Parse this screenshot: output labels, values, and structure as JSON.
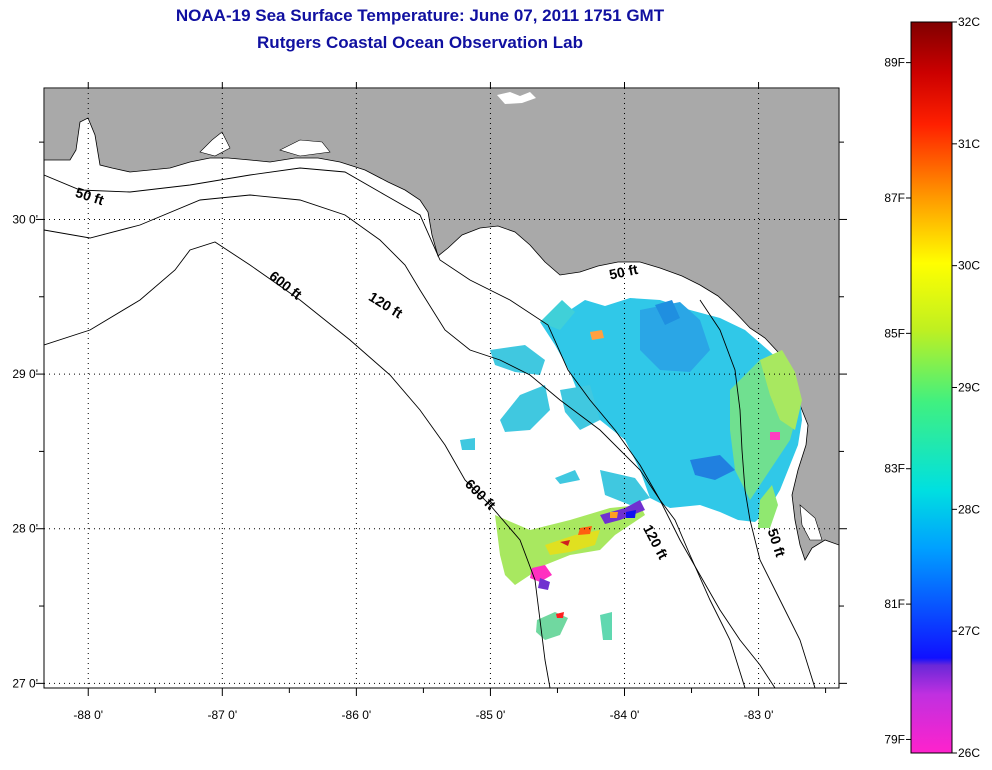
{
  "header": {
    "title": "NOAA-19 Sea Surface Temperature:  June 07, 2011 1751 GMT",
    "subtitle": "Rutgers Coastal Ocean Observation Lab"
  },
  "map": {
    "lon_range": [
      -88.33,
      -82.4
    ],
    "lat_range": [
      26.97,
      30.85
    ],
    "lon_ticks": [
      {
        "value": -88,
        "label": "-88 0'"
      },
      {
        "value": -87,
        "label": "-87 0'"
      },
      {
        "value": -86,
        "label": "-86 0'"
      },
      {
        "value": -85,
        "label": "-85 0'"
      },
      {
        "value": -84,
        "label": "-84 0'"
      },
      {
        "value": -83,
        "label": "-83 0'"
      }
    ],
    "lat_ticks": [
      {
        "value": 30,
        "label": "30 0'"
      },
      {
        "value": 29,
        "label": "29 0'"
      },
      {
        "value": 28,
        "label": "28 0'"
      },
      {
        "value": 27,
        "label": "27 0'"
      }
    ],
    "contour_labels": [
      {
        "text": "50 ft",
        "lon": -88.0,
        "lat": 30.12,
        "rotate": 18
      },
      {
        "text": "600 ft",
        "lon": -86.55,
        "lat": 29.55,
        "rotate": 38
      },
      {
        "text": "120 ft",
        "lon": -85.8,
        "lat": 29.42,
        "rotate": 32
      },
      {
        "text": "50 ft",
        "lon": -84.0,
        "lat": 29.63,
        "rotate": -12
      },
      {
        "text": "600 ft",
        "lon": -85.1,
        "lat": 28.2,
        "rotate": 45
      },
      {
        "text": "120 ft",
        "lon": -83.8,
        "lat": 27.9,
        "rotate": 62
      },
      {
        "text": "50 ft",
        "lon": -82.9,
        "lat": 27.9,
        "rotate": 72
      }
    ],
    "colors": {
      "land": "#a9a9a9",
      "ocean": "#ffffff",
      "grid": "#000000"
    }
  },
  "colorbar": {
    "celsius": [
      {
        "value": 32,
        "label": "32C"
      },
      {
        "value": 31,
        "label": "31C"
      },
      {
        "value": 30,
        "label": "30C"
      },
      {
        "value": 29,
        "label": "29C"
      },
      {
        "value": 28,
        "label": "28C"
      },
      {
        "value": 27,
        "label": "27C"
      },
      {
        "value": 26,
        "label": "26C"
      }
    ],
    "fahrenheit": [
      {
        "value": 89,
        "label": "89F"
      },
      {
        "value": 87,
        "label": "87F"
      },
      {
        "value": 85,
        "label": "85F"
      },
      {
        "value": 83,
        "label": "83F"
      },
      {
        "value": 81,
        "label": "81F"
      },
      {
        "value": 79,
        "label": "79F"
      }
    ],
    "range_c": [
      26,
      32
    ]
  }
}
